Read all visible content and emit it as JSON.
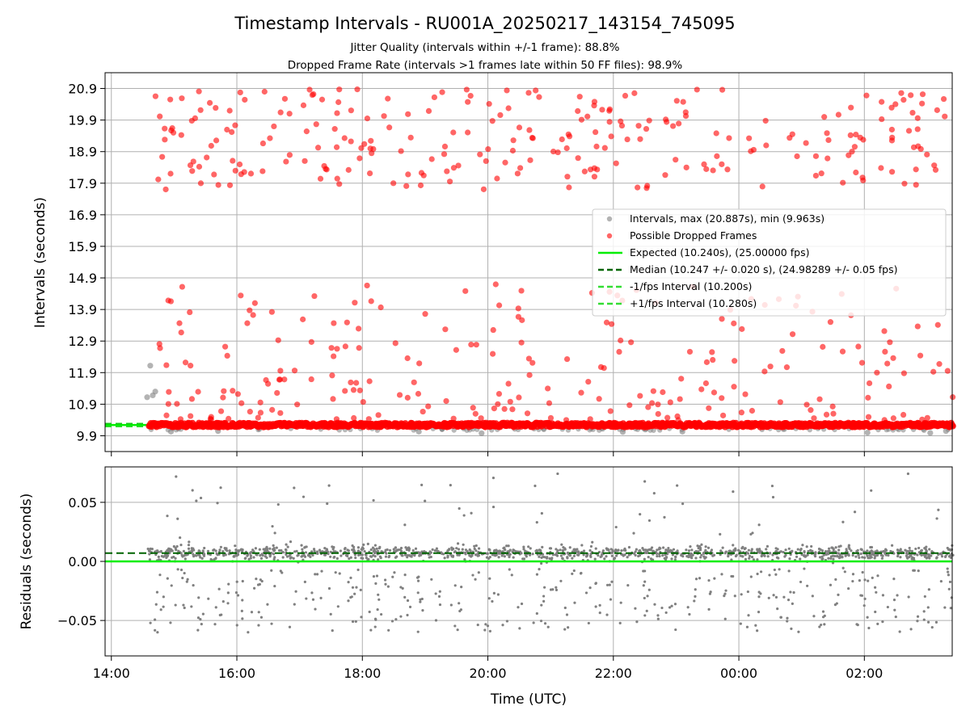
{
  "figure": {
    "title": "Timestamp Intervals - RU001A_20250217_143154_745095",
    "subtitle_1": "Jitter Quality (intervals within +/-1 frame): 88.8%",
    "subtitle_2": "Dropped Frame Rate (intervals >1 frames late within 50 FF files): 98.9%"
  },
  "colors": {
    "intervals": "#808080",
    "dropped": "#ff0000",
    "expected": "#00ee00",
    "median": "#006400",
    "interval_bounds": "#33dd33",
    "residuals": "#808080",
    "grid": "#b0b0b0"
  },
  "chart_data": [
    {
      "type": "scatter",
      "ylabel": "Intervals (seconds)",
      "yticks": [
        "9.9",
        "10.9",
        "11.9",
        "12.9",
        "13.9",
        "14.9",
        "15.9",
        "16.9",
        "17.9",
        "18.9",
        "19.9",
        "20.9"
      ],
      "ylim": [
        9.4,
        21.4
      ],
      "xlim_hours": [
        13.9,
        27.4
      ],
      "x_start": "14:35",
      "x_end": "03:25",
      "grid": true,
      "legend_position": "center-right",
      "legend": [
        "Intervals, max (20.887s), min (9.963s)",
        "Possible Dropped Frames",
        "Expected (10.240s), (25.00000 fps)",
        "Median (10.247 +/- 0.020 s), (24.98289 +/- 0.05 fps)",
        "-1/fps Interval (10.200s)",
        "+1/fps Interval (10.280s)"
      ],
      "expected_interval": 10.24,
      "median_interval": 10.247,
      "minus_interval": 10.2,
      "plus_interval": 10.28,
      "max_interval": 20.887,
      "min_interval": 9.963,
      "series": [
        {
          "name": "Intervals, max (20.887s), min (9.963s)",
          "description": "Main band of intervals near 10.24 s, plus a few gray outliers",
          "values": [
            [
              14.62,
              12.12
            ],
            [
              14.57,
              11.12
            ],
            [
              14.66,
              11.18
            ],
            [
              14.7,
              11.3
            ],
            [
              14.95,
              10.03
            ],
            [
              15.7,
              10.05
            ],
            [
              18.9,
              10.03
            ],
            [
              19.9,
              9.98
            ],
            [
              22.15,
              10.02
            ],
            [
              23.1,
              10.03
            ],
            [
              26.05,
              10.0
            ],
            [
              27.05,
              9.99
            ],
            [
              27.3,
              10.05
            ]
          ]
        },
        {
          "name": "Possible Dropped Frames",
          "description": "Red points scattered in band 10.0-14.7 s and in band 17.7-20.9 s",
          "upper_band": [
            17.7,
            20.9
          ],
          "lower_band": [
            10.0,
            14.7
          ],
          "upper_count": 260,
          "lower_count": 230
        }
      ]
    },
    {
      "type": "scatter",
      "ylabel": "Residuals (seconds)",
      "xlabel": "Time (UTC)",
      "yticks": [
        "−0.05",
        "0.00",
        "0.05"
      ],
      "ylim": [
        -0.08,
        0.08
      ],
      "xlim_hours": [
        13.9,
        27.4
      ],
      "xticks": [
        "14:00",
        "16:00",
        "18:00",
        "20:00",
        "22:00",
        "00:00",
        "02:00"
      ],
      "xtick_hours": [
        14,
        16,
        18,
        20,
        22,
        24,
        26
      ],
      "grid": true,
      "expected_line": 0.0,
      "median_line": 0.007,
      "series": [
        {
          "name": "residuals",
          "description": "Dense cluster around +0.007 s with spread to about -0.06 and a few outliers up to +0.075",
          "cluster_center": 0.007,
          "count": 1650
        }
      ]
    }
  ]
}
